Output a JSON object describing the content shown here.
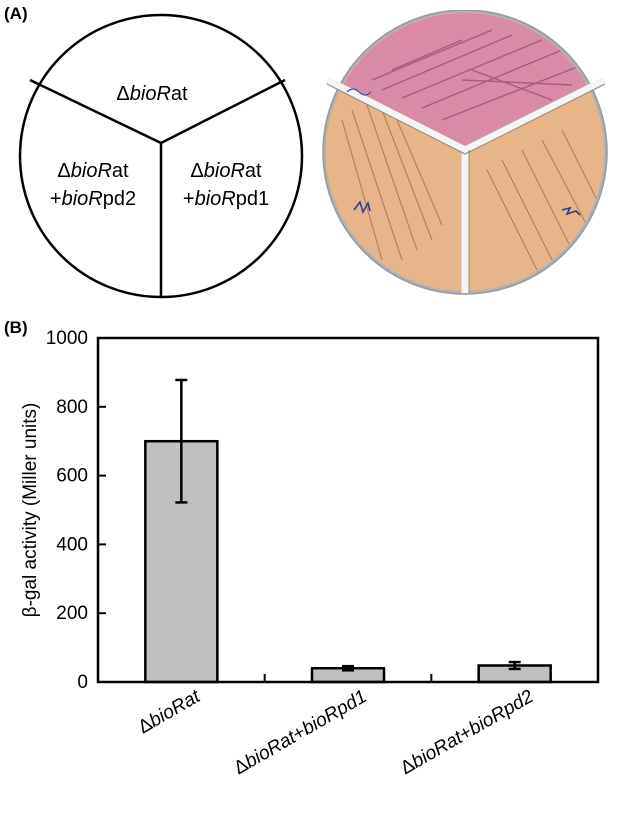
{
  "panel_a": {
    "label": "(A)",
    "sectors": {
      "top": {
        "prefix": "Δ",
        "italic": "bioR",
        "suffix": "at"
      },
      "left": {
        "line1": {
          "prefix": "Δ",
          "italic": "bioR",
          "suffix": "at"
        },
        "line2": {
          "prefix": "+",
          "italic": "bioR",
          "suffix": "pd2"
        }
      },
      "right": {
        "line1": {
          "prefix": "Δ",
          "italic": "bioR",
          "suffix": "at"
        },
        "line2": {
          "prefix": "+",
          "italic": "bioR",
          "suffix": "pd1"
        }
      }
    },
    "plate_colors": {
      "top": "#d98aa6",
      "bottom": "#e7b58a",
      "rim": "#cfcfcf",
      "streak": "#8a5a3a"
    }
  },
  "panel_b": {
    "label": "(B)"
  },
  "chart_data": {
    "type": "bar",
    "categories": [
      "ΔbioRat",
      "ΔbioRat+bioRpd1",
      "ΔbioRat+bioRpd2"
    ],
    "category_parts": [
      [
        {
          "t": "Δ",
          "i": false
        },
        {
          "t": "bioRat",
          "i": true
        }
      ],
      [
        {
          "t": "Δ",
          "i": false
        },
        {
          "t": "bioRat",
          "i": true
        },
        {
          "t": "+",
          "i": false
        },
        {
          "t": "bioRpd1",
          "i": true
        }
      ],
      [
        {
          "t": "Δ",
          "i": false
        },
        {
          "t": "bioRat",
          "i": true
        },
        {
          "t": "+",
          "i": false
        },
        {
          "t": "bioRpd2",
          "i": true
        }
      ]
    ],
    "values": [
      700,
      40,
      48
    ],
    "errors": [
      178,
      6,
      10
    ],
    "ylabel": "β-gal activity (Miller units)",
    "xlabel": "",
    "ylim": [
      0,
      1000
    ],
    "yticks": [
      0,
      200,
      400,
      600,
      800,
      1000
    ],
    "bar_color": "#c0c0c0",
    "grid": false
  }
}
